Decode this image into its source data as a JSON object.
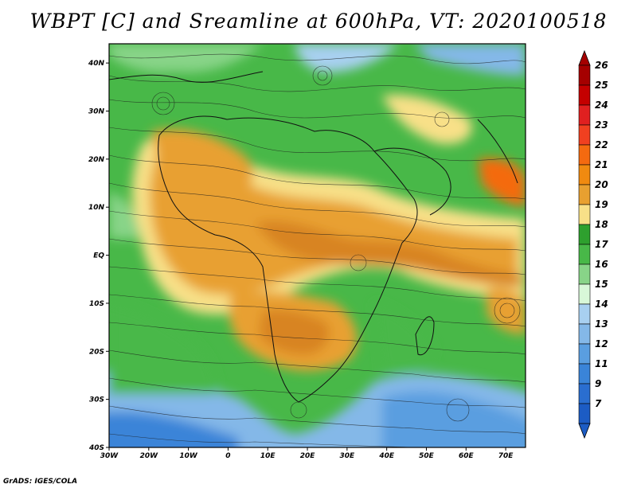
{
  "title": "WBPT [C] and Sreamline at 600hPa, VT: 2020100518",
  "credit": "GrADS: IGES/COLA",
  "map": {
    "lon_labels": [
      "30W",
      "20W",
      "10W",
      "0",
      "10E",
      "20E",
      "30E",
      "40E",
      "50E",
      "60E",
      "70E"
    ],
    "lat_labels": [
      "40N",
      "30N",
      "20N",
      "10N",
      "EQ",
      "10S",
      "20S",
      "30S",
      "40S"
    ],
    "lon_range": [
      -30,
      75
    ],
    "lat_range": [
      -40,
      44
    ],
    "variable": "WBPT",
    "units": "C",
    "level": "600hPa"
  },
  "colorbar": {
    "labels": [
      "26",
      "25",
      "24",
      "23",
      "22",
      "21",
      "20",
      "19",
      "18",
      "17",
      "16",
      "15",
      "14",
      "13",
      "12",
      "11",
      "9",
      "7"
    ],
    "colors": [
      "#a50000",
      "#c40000",
      "#e02020",
      "#f04020",
      "#f46a10",
      "#f08a10",
      "#e8a030",
      "#f8e088",
      "#2ea02e",
      "#48b848",
      "#88d488",
      "#d8f8d8",
      "#a8d0f0",
      "#84b8e8",
      "#5a9ee0",
      "#3a84d8",
      "#2a6ed0",
      "#1c5cc4"
    ],
    "top_arrow_color": "#a50000",
    "bottom_arrow_color": "#1c5cc4"
  },
  "palette": {
    "ocean_deep": "#2a6ed0",
    "ocean_mid": "#6aa8e4",
    "ocean_light": "#a8d0f0",
    "green": "#48b848",
    "light_green": "#88d488",
    "yellow": "#f8e088",
    "orange": "#e8a030",
    "dark_orange": "#d88420",
    "red_orange": "#f46a10"
  }
}
